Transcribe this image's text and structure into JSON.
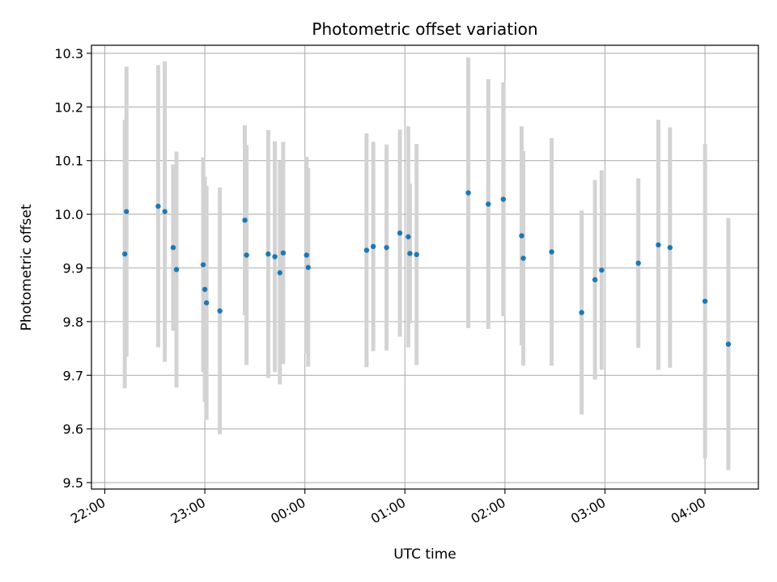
{
  "chart_data": {
    "type": "scatter",
    "title": "Photometric offset variation",
    "xlabel": "UTC time",
    "ylabel": "Photometric offset",
    "xlim": [
      "21:52",
      "04:32"
    ],
    "ylim": [
      9.488,
      10.315
    ],
    "x_ticks": [
      "22:00",
      "23:00",
      "00:00",
      "01:00",
      "02:00",
      "03:00",
      "04:00"
    ],
    "y_ticks": [
      "9.5",
      "9.6",
      "9.7",
      "9.8",
      "9.9",
      "10.0",
      "10.1",
      "10.2",
      "10.3"
    ],
    "grid": true,
    "point_color": "#1f77b4",
    "errorbar_color": "#d3d3d3",
    "points": [
      {
        "x": "22:12",
        "y": 9.926,
        "err": 0.25
      },
      {
        "x": "22:13",
        "y": 10.005,
        "err": 0.27
      },
      {
        "x": "22:32",
        "y": 10.015,
        "err": 0.263
      },
      {
        "x": "22:36",
        "y": 10.005,
        "err": 0.28
      },
      {
        "x": "22:41",
        "y": 9.938,
        "err": 0.155
      },
      {
        "x": "22:43",
        "y": 9.897,
        "err": 0.22
      },
      {
        "x": "22:59",
        "y": 9.906,
        "err": 0.2
      },
      {
        "x": "23:00",
        "y": 9.86,
        "err": 0.21
      },
      {
        "x": "23:01",
        "y": 9.835,
        "err": 0.218
      },
      {
        "x": "23:09",
        "y": 9.82,
        "err": 0.23
      },
      {
        "x": "23:24",
        "y": 9.989,
        "err": 0.177
      },
      {
        "x": "23:25",
        "y": 9.924,
        "err": 0.205
      },
      {
        "x": "23:38",
        "y": 9.926,
        "err": 0.231
      },
      {
        "x": "23:42",
        "y": 9.921,
        "err": 0.215
      },
      {
        "x": "23:45",
        "y": 9.891,
        "err": 0.208
      },
      {
        "x": "23:47",
        "y": 9.928,
        "err": 0.207
      },
      {
        "x": "00:01",
        "y": 9.924,
        "err": 0.183
      },
      {
        "x": "00:02",
        "y": 9.901,
        "err": 0.185
      },
      {
        "x": "00:37",
        "y": 9.933,
        "err": 0.218
      },
      {
        "x": "00:41",
        "y": 9.94,
        "err": 0.195
      },
      {
        "x": "00:49",
        "y": 9.938,
        "err": 0.192
      },
      {
        "x": "00:57",
        "y": 9.965,
        "err": 0.193
      },
      {
        "x": "01:02",
        "y": 9.958,
        "err": 0.206
      },
      {
        "x": "01:03",
        "y": 9.927,
        "err": 0.13
      },
      {
        "x": "01:07",
        "y": 9.925,
        "err": 0.206
      },
      {
        "x": "01:38",
        "y": 10.04,
        "err": 0.252
      },
      {
        "x": "01:50",
        "y": 10.019,
        "err": 0.233
      },
      {
        "x": "01:59",
        "y": 10.028,
        "err": 0.218
      },
      {
        "x": "02:10",
        "y": 9.96,
        "err": 0.204
      },
      {
        "x": "02:11",
        "y": 9.918,
        "err": 0.2
      },
      {
        "x": "02:28",
        "y": 9.93,
        "err": 0.212
      },
      {
        "x": "02:46",
        "y": 9.817,
        "err": 0.19
      },
      {
        "x": "02:54",
        "y": 9.878,
        "err": 0.186
      },
      {
        "x": "02:58",
        "y": 9.896,
        "err": 0.186
      },
      {
        "x": "03:20",
        "y": 9.909,
        "err": 0.158
      },
      {
        "x": "03:32",
        "y": 9.943,
        "err": 0.233
      },
      {
        "x": "03:39",
        "y": 9.938,
        "err": 0.224
      },
      {
        "x": "04:00",
        "y": 9.838,
        "err": 0.293
      },
      {
        "x": "04:14",
        "y": 9.758,
        "err": 0.235
      }
    ]
  }
}
